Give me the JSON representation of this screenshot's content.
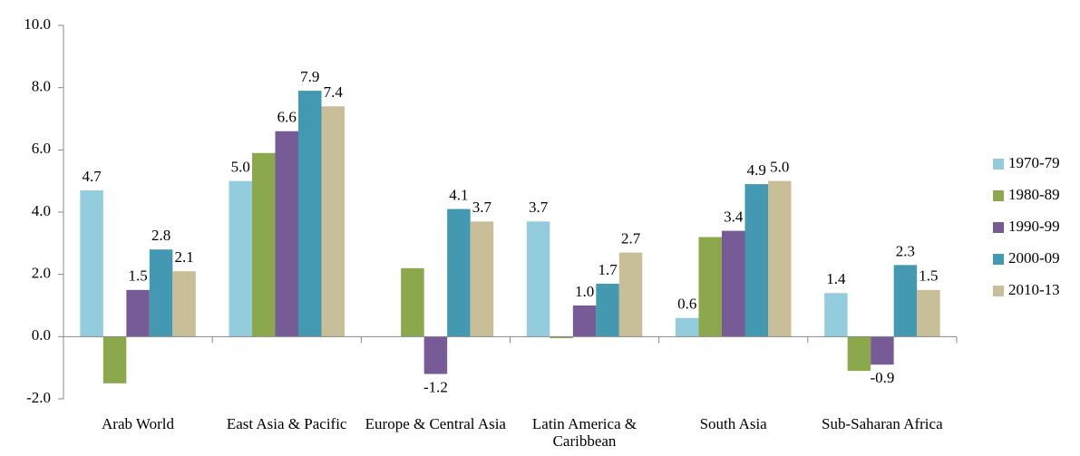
{
  "chart_data": {
    "type": "bar",
    "categories": [
      "Arab World",
      "East Asia & Pacific",
      "Europe & Central Asia",
      "Latin America & Caribbean",
      "South Asia",
      "Sub-Saharan Africa"
    ],
    "series": [
      {
        "name": "1970-79",
        "color": "#93cddd",
        "values": [
          4.7,
          5.0,
          null,
          3.7,
          0.6,
          1.4
        ],
        "value_labels": [
          "4.7",
          "5.0",
          null,
          "3.7",
          "0.6",
          "1.4"
        ]
      },
      {
        "name": "1980-89",
        "color": "#8ba84c",
        "values": [
          -1.5,
          5.9,
          2.2,
          -0.05,
          3.2,
          -1.1
        ],
        "value_labels": [
          null,
          null,
          null,
          null,
          null,
          null
        ]
      },
      {
        "name": "1990-99",
        "color": "#765b96",
        "values": [
          1.5,
          6.6,
          -1.2,
          1.0,
          3.4,
          -0.9
        ],
        "value_labels": [
          "1.5",
          "6.6",
          "-1.2",
          "1.0",
          "3.4",
          "-0.9"
        ]
      },
      {
        "name": "2000-09",
        "color": "#4299b1",
        "values": [
          2.8,
          7.9,
          4.1,
          1.7,
          4.9,
          2.3
        ],
        "value_labels": [
          "2.8",
          "7.9",
          "4.1",
          "1.7",
          "4.9",
          "2.3"
        ]
      },
      {
        "name": "2010-13",
        "color": "#c8bf98",
        "values": [
          2.1,
          7.4,
          3.7,
          2.7,
          5.0,
          1.5
        ],
        "value_labels": [
          "2.1",
          "7.4",
          "3.7",
          "2.7",
          "5.0",
          "1.5"
        ]
      }
    ],
    "ylim": [
      -2,
      10
    ],
    "yticks": [
      {
        "value": -2,
        "label": "-2.0"
      },
      {
        "value": 0,
        "label": "0.0"
      },
      {
        "value": 2,
        "label": "2.0"
      },
      {
        "value": 4,
        "label": "4.0"
      },
      {
        "value": 6,
        "label": "6.0"
      },
      {
        "value": 8,
        "label": "8.0"
      },
      {
        "value": 10,
        "label": "10.0"
      }
    ],
    "legend": "right"
  }
}
